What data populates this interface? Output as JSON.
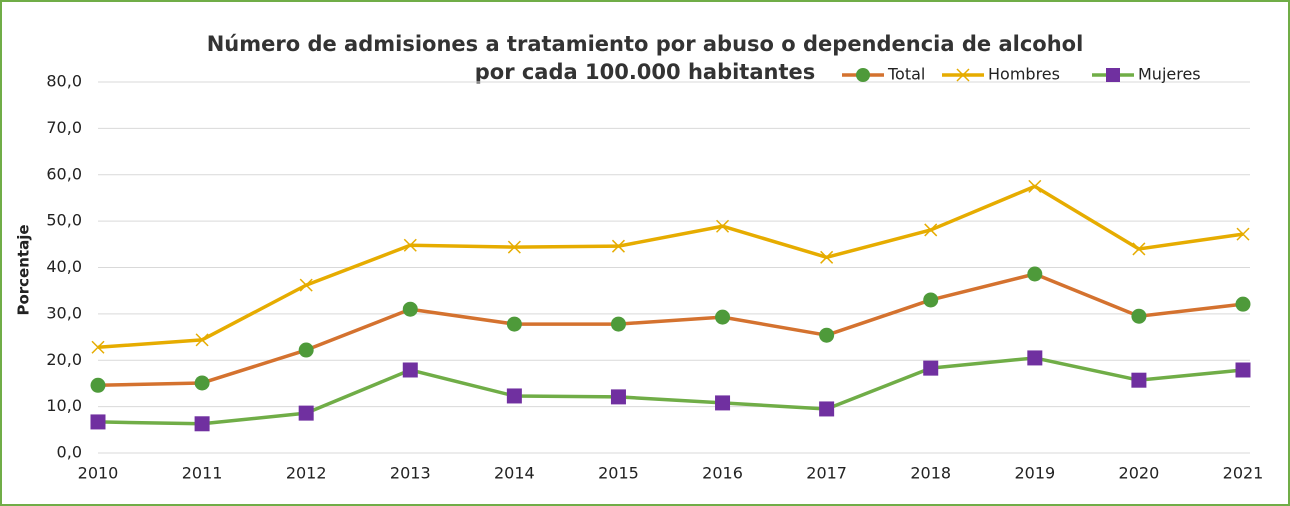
{
  "chart_data": {
    "type": "line",
    "title": "Número de admisiones a tratamiento por abuso o dependencia de alcohol",
    "subtitle": "por cada 100.000 habitantes",
    "y_label": "Porcentaje",
    "categories": [
      "2010",
      "2011",
      "2012",
      "2013",
      "2014",
      "2015",
      "2016",
      "2017",
      "2018",
      "2019",
      "2020",
      "2021"
    ],
    "series": [
      {
        "name": "Total",
        "color": "#d4722f",
        "marker": "circle",
        "marker_color": "#4e9a3a",
        "values": [
          14.6,
          15.1,
          22.2,
          31.0,
          27.8,
          27.8,
          29.3,
          25.4,
          33.0,
          38.6,
          29.5,
          32.1
        ]
      },
      {
        "name": "Hombres",
        "color": "#e6ac00",
        "marker": "x",
        "marker_color": "#e6ac00",
        "values": [
          22.8,
          24.4,
          36.2,
          44.8,
          44.4,
          44.6,
          48.9,
          42.2,
          48.1,
          57.5,
          44.0,
          47.2
        ]
      },
      {
        "name": "Mujeres",
        "color": "#70ad47",
        "marker": "square",
        "marker_color": "#7030a0",
        "values": [
          6.7,
          6.3,
          8.6,
          17.9,
          12.3,
          12.1,
          10.8,
          9.5,
          18.3,
          20.5,
          15.7,
          17.9
        ]
      }
    ],
    "ylim": [
      0,
      80
    ],
    "yticks": [
      {
        "value": 0,
        "label": "0,0"
      },
      {
        "value": 10,
        "label": "10,0"
      },
      {
        "value": 20,
        "label": "20,0"
      },
      {
        "value": 30,
        "label": "30,0"
      },
      {
        "value": 40,
        "label": "40,0"
      },
      {
        "value": 50,
        "label": "50,0"
      },
      {
        "value": 60,
        "label": "60,0"
      },
      {
        "value": 70,
        "label": "70,0"
      },
      {
        "value": 80,
        "label": "80,0"
      }
    ],
    "grid": true,
    "legend": "top-right"
  }
}
